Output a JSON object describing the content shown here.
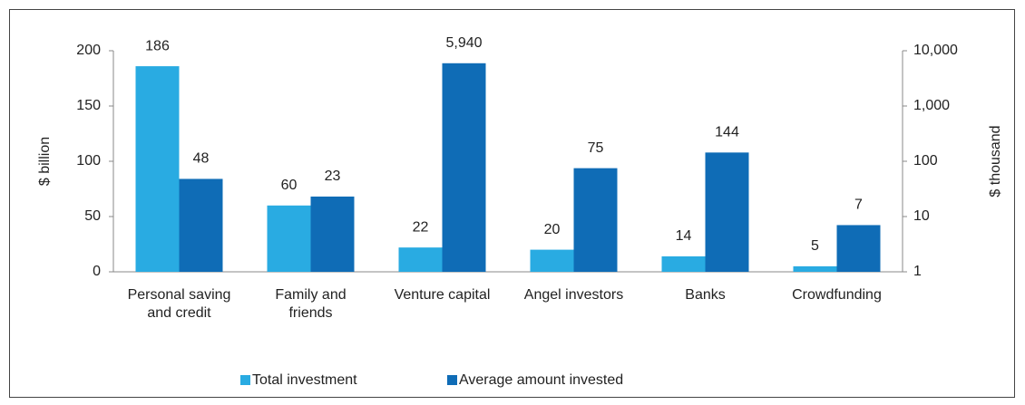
{
  "chart_data": {
    "type": "bar",
    "categories": [
      "Personal saving and credit",
      "Family and friends",
      "Venture capital",
      "Angel investors",
      "Banks",
      "Crowdfunding"
    ],
    "series": [
      {
        "name": "Total investment",
        "color": "#29abe2",
        "values": [
          186,
          60,
          22,
          20,
          14,
          5
        ]
      },
      {
        "name": "Average amount invested",
        "color": "#0f6cb6",
        "axis": "y2",
        "values": [
          48,
          23,
          5940,
          75,
          144,
          7
        ],
        "value_labels": [
          "48",
          "23",
          "5,940",
          "75",
          "144",
          "7"
        ]
      }
    ],
    "ylabel": "$ billion",
    "y2label": "$ thousand",
    "ylim": [
      0,
      200
    ],
    "yticks": [
      0,
      50,
      100,
      150,
      200
    ],
    "y2lim": [
      1,
      10000
    ],
    "y2ticks": [
      1,
      10,
      100,
      {
        "value": 1000,
        "label": "1,000"
      },
      {
        "value": 10000,
        "label": "10,000"
      }
    ],
    "y2log": true,
    "legend": "bottom"
  }
}
